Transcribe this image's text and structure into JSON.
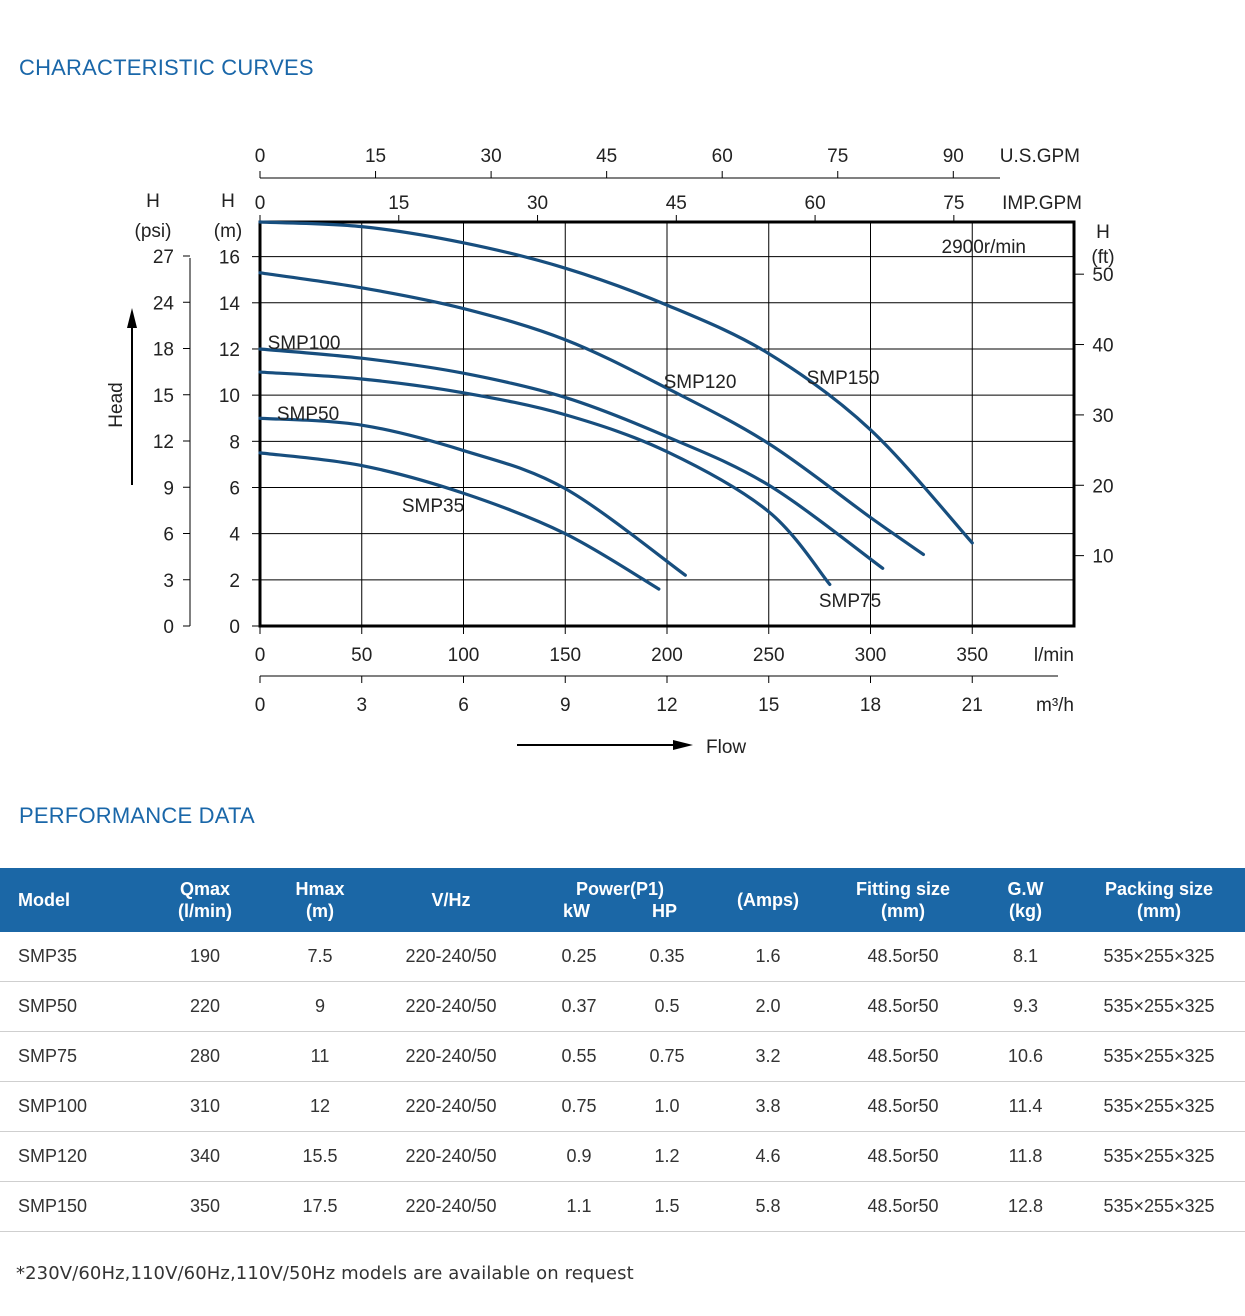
{
  "titles": {
    "curves": "CHARACTERISTIC CURVES",
    "performance": "PERFORMANCE DATA"
  },
  "chart_data": {
    "type": "line",
    "speed_label": "2900r/min",
    "xlabel": "Flow",
    "ylabel": "Head",
    "xlim": [
      0,
      400
    ],
    "ylim": [
      0,
      17.5
    ],
    "grid": true,
    "x_axes": {
      "lmin": {
        "unit": "l/min",
        "ticks": [
          0,
          50,
          100,
          150,
          200,
          250,
          300,
          350
        ]
      },
      "m3h": {
        "unit": "m³/h",
        "ticks": [
          "0",
          "3",
          "6",
          "9",
          "12",
          "15",
          "18",
          "21"
        ]
      },
      "usgpm": {
        "unit": "U.S.GPM",
        "ticks": [
          "0",
          "15",
          "30",
          "45",
          "60",
          "75",
          "90"
        ]
      },
      "impgpm": {
        "unit": "IMP.GPM",
        "ticks": [
          "0",
          "15",
          "30",
          "45",
          "60",
          "75"
        ]
      }
    },
    "y_axes": {
      "m": {
        "title": "H",
        "unit": "(m)",
        "ticks": [
          "0",
          "2",
          "4",
          "6",
          "8",
          "10",
          "12",
          "14",
          "16"
        ]
      },
      "psi": {
        "title": "H",
        "unit": "(psi)",
        "ticks": [
          "0",
          "3",
          "6",
          "9",
          "12",
          "15",
          "18",
          "24",
          "27"
        ]
      },
      "ft": {
        "title": "H",
        "unit": "(ft)",
        "ticks": [
          "10",
          "20",
          "30",
          "40",
          "50"
        ]
      }
    },
    "series": [
      {
        "name": "SMP35",
        "x": [
          0,
          50,
          100,
          150,
          196
        ],
        "y": [
          7.5,
          6.95,
          5.75,
          4.0,
          1.6
        ]
      },
      {
        "name": "SMP50",
        "x": [
          0,
          50,
          100,
          150,
          209
        ],
        "y": [
          9.0,
          8.7,
          7.6,
          5.95,
          2.2
        ]
      },
      {
        "name": "SMP75",
        "x": [
          0,
          50,
          100,
          150,
          200,
          250,
          280
        ],
        "y": [
          11.0,
          10.7,
          10.1,
          9.15,
          7.55,
          4.95,
          1.8
        ]
      },
      {
        "name": "SMP100",
        "x": [
          0,
          50,
          100,
          150,
          200,
          250,
          306
        ],
        "y": [
          12.0,
          11.6,
          10.95,
          9.9,
          8.2,
          6.1,
          2.5
        ]
      },
      {
        "name": "SMP120",
        "x": [
          0,
          50,
          100,
          150,
          200,
          250,
          300,
          326
        ],
        "y": [
          15.3,
          14.65,
          13.75,
          12.4,
          10.3,
          7.9,
          4.7,
          3.1
        ]
      },
      {
        "name": "SMP150",
        "x": [
          0,
          50,
          100,
          150,
          200,
          250,
          300,
          350
        ],
        "y": [
          17.5,
          17.3,
          16.6,
          15.5,
          13.9,
          11.8,
          8.5,
          3.6
        ]
      }
    ]
  },
  "table": {
    "headers": {
      "model": "Model",
      "qmax": [
        "Qmax",
        "(l/min)"
      ],
      "hmax": [
        "Hmax",
        "(m)"
      ],
      "vhz": "V/Hz",
      "power": "Power(P1)",
      "kw": "kW",
      "hp": "HP",
      "amps": "(Amps)",
      "fitting": [
        "Fitting size",
        "(mm)"
      ],
      "gw": [
        "G.W",
        "(kg)"
      ],
      "packing": [
        "Packing size",
        "(mm)"
      ]
    },
    "rows": [
      {
        "model": "SMP35",
        "qmax": "190",
        "hmax": "7.5",
        "vhz": "220-240/50",
        "kw": "0.25",
        "hp": "0.35",
        "amps": "1.6",
        "fitting": "48.5or50",
        "gw": "8.1",
        "packing": "535×255×325"
      },
      {
        "model": "SMP50",
        "qmax": "220",
        "hmax": "9",
        "vhz": "220-240/50",
        "kw": "0.37",
        "hp": "0.5",
        "amps": "2.0",
        "fitting": "48.5or50",
        "gw": "9.3",
        "packing": "535×255×325"
      },
      {
        "model": "SMP75",
        "qmax": "280",
        "hmax": "11",
        "vhz": "220-240/50",
        "kw": "0.55",
        "hp": "0.75",
        "amps": "3.2",
        "fitting": "48.5or50",
        "gw": "10.6",
        "packing": "535×255×325"
      },
      {
        "model": "SMP100",
        "qmax": "310",
        "hmax": "12",
        "vhz": "220-240/50",
        "kw": "0.75",
        "hp": "1.0",
        "amps": "3.8",
        "fitting": "48.5or50",
        "gw": "11.4",
        "packing": "535×255×325"
      },
      {
        "model": "SMP120",
        "qmax": "340",
        "hmax": "15.5",
        "vhz": "220-240/50",
        "kw": "0.9",
        "hp": "1.2",
        "amps": "4.6",
        "fitting": "48.5or50",
        "gw": "11.8",
        "packing": "535×255×325"
      },
      {
        "model": "SMP150",
        "qmax": "350",
        "hmax": "17.5",
        "vhz": "220-240/50",
        "kw": "1.1",
        "hp": "1.5",
        "amps": "5.8",
        "fitting": "48.5or50",
        "gw": "12.8",
        "packing": "535×255×325"
      }
    ]
  },
  "footnote": "*230V/60Hz,110V/60Hz,110V/50Hz models are available on request",
  "colors": {
    "accent": "#1b67a6",
    "curve": "#174e7e"
  }
}
